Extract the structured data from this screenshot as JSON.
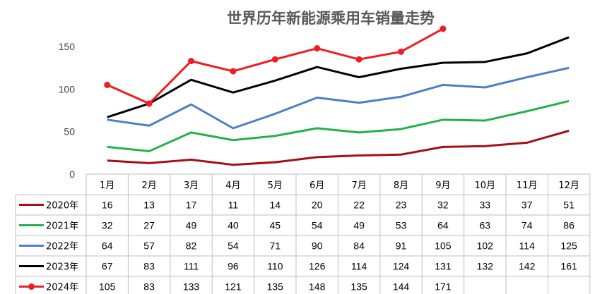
{
  "chart_data": {
    "type": "line",
    "title": "世界历年新能源乘用车销量走势",
    "categories": [
      "1月",
      "2月",
      "3月",
      "4月",
      "5月",
      "6月",
      "7月",
      "8月",
      "9月",
      "10月",
      "11月",
      "12月"
    ],
    "yticks": [
      0,
      50,
      100,
      150
    ],
    "ylim": [
      0,
      170
    ],
    "grid": false,
    "legend": "table",
    "series": [
      {
        "name": "2020年",
        "color": "#a50f15",
        "values": [
          16,
          13,
          17,
          11,
          14,
          20,
          22,
          23,
          32,
          33,
          37,
          51
        ]
      },
      {
        "name": "2021年",
        "color": "#22b14c",
        "values": [
          32,
          27,
          49,
          40,
          45,
          54,
          49,
          53,
          64,
          63,
          74,
          86
        ]
      },
      {
        "name": "2022年",
        "color": "#4f7ec4",
        "values": [
          64,
          57,
          82,
          54,
          71,
          90,
          84,
          91,
          105,
          102,
          114,
          125
        ]
      },
      {
        "name": "2023年",
        "color": "#000000",
        "values": [
          67,
          83,
          111,
          96,
          110,
          126,
          114,
          124,
          131,
          132,
          142,
          161
        ]
      },
      {
        "name": "2024年",
        "color": "#ee1c24",
        "markers": true,
        "values": [
          105,
          83,
          133,
          121,
          135,
          148,
          135,
          144,
          171,
          null,
          null,
          null
        ]
      }
    ]
  }
}
